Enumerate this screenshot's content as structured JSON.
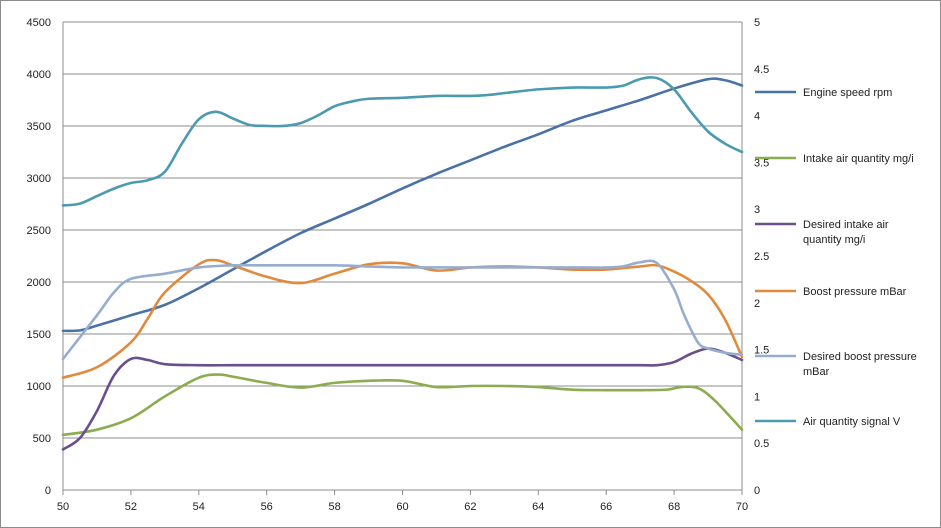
{
  "chart_data": {
    "type": "line",
    "x_range": [
      50,
      70
    ],
    "x_ticks": [
      "50",
      "52",
      "54",
      "56",
      "58",
      "60",
      "62",
      "64",
      "66",
      "68",
      "70"
    ],
    "y_left_range": [
      0,
      4500
    ],
    "y_left_ticks": [
      "0",
      "500",
      "1000",
      "1500",
      "2000",
      "2500",
      "3000",
      "3500",
      "4000",
      "4500"
    ],
    "y_right_range": [
      0,
      5
    ],
    "y_right_ticks": [
      "0",
      "0.5",
      "1",
      "1.5",
      "2",
      "2.5",
      "3",
      "3.5",
      "4",
      "4.5",
      "5"
    ],
    "grid": "horizontal",
    "legend_position": "right",
    "series": [
      {
        "name": "Engine speed rpm",
        "axis": "left",
        "color": "#4a72a6",
        "x": [
          50,
          50.5,
          51,
          52,
          53,
          54,
          55,
          56,
          57,
          58,
          59,
          60,
          61,
          62,
          63,
          64,
          65,
          66,
          67,
          68,
          69,
          69.5,
          70
        ],
        "y": [
          1530,
          1535,
          1580,
          1680,
          1780,
          1940,
          2120,
          2300,
          2470,
          2610,
          2750,
          2900,
          3040,
          3170,
          3300,
          3420,
          3550,
          3650,
          3750,
          3860,
          3950,
          3940,
          3890
        ]
      },
      {
        "name": "Intake air quantity mg/i",
        "axis": "left",
        "color": "#8bac4f",
        "x": [
          50,
          51,
          52,
          53,
          54,
          54.6,
          55,
          56,
          57,
          58,
          59,
          60,
          61,
          62,
          63,
          64,
          65,
          66,
          67,
          67.8,
          68.2,
          68.7,
          69.2,
          70
        ],
        "y": [
          530,
          580,
          690,
          900,
          1080,
          1110,
          1090,
          1030,
          985,
          1030,
          1050,
          1050,
          990,
          1000,
          1000,
          990,
          965,
          960,
          960,
          965,
          990,
          980,
          860,
          580
        ]
      },
      {
        "name": "Desired intake air quantity mg/i",
        "axis": "left",
        "color": "#6a4f8c",
        "x": [
          50,
          50.5,
          51,
          51.5,
          52,
          52.5,
          53,
          54,
          55,
          56,
          57,
          58,
          59,
          60,
          61,
          62,
          63,
          64,
          65,
          66,
          67,
          67.5,
          68,
          68.5,
          69,
          69.5,
          70
        ],
        "y": [
          390,
          500,
          760,
          1100,
          1260,
          1250,
          1210,
          1200,
          1200,
          1200,
          1200,
          1200,
          1200,
          1200,
          1200,
          1200,
          1200,
          1200,
          1200,
          1200,
          1200,
          1200,
          1230,
          1310,
          1360,
          1320,
          1250
        ]
      },
      {
        "name": "Boost pressure mBar",
        "axis": "left",
        "color": "#e08a3e",
        "x": [
          50,
          51,
          52,
          52.5,
          53,
          54,
          54.5,
          55,
          56,
          57,
          58,
          59,
          60,
          61,
          62,
          63,
          64,
          65,
          66,
          67,
          67.5,
          68,
          68.5,
          69,
          69.5,
          70
        ],
        "y": [
          1080,
          1180,
          1420,
          1650,
          1900,
          2170,
          2210,
          2160,
          2050,
          1990,
          2080,
          2170,
          2180,
          2110,
          2140,
          2150,
          2140,
          2120,
          2120,
          2150,
          2160,
          2100,
          2010,
          1880,
          1640,
          1280
        ]
      },
      {
        "name": "Desired boost pressure mBar",
        "axis": "left",
        "color": "#97add0",
        "x": [
          50,
          51,
          51.5,
          52,
          53,
          54,
          55,
          56,
          57,
          58,
          59,
          60,
          61,
          62,
          63,
          64,
          65,
          66,
          66.5,
          67,
          67.5,
          68,
          68.3,
          68.7,
          69,
          69.5,
          70
        ],
        "y": [
          1260,
          1680,
          1900,
          2030,
          2080,
          2140,
          2160,
          2160,
          2160,
          2160,
          2150,
          2140,
          2140,
          2140,
          2140,
          2140,
          2140,
          2140,
          2150,
          2190,
          2180,
          1930,
          1680,
          1420,
          1360,
          1320,
          1300
        ]
      },
      {
        "name": "Air quantity signal V",
        "axis": "right",
        "color": "#4b9ab0",
        "x": [
          50,
          50.5,
          51,
          51.5,
          52,
          52.5,
          53,
          53.5,
          54,
          54.5,
          55,
          55.5,
          56,
          56.5,
          57,
          57.5,
          58,
          58.5,
          59,
          60,
          61,
          62,
          62.5,
          63,
          64,
          65,
          66,
          66.5,
          67,
          67.5,
          68,
          68.5,
          69,
          69.5,
          70
        ],
        "y": [
          3.04,
          3.06,
          3.14,
          3.22,
          3.28,
          3.31,
          3.4,
          3.7,
          3.96,
          4.04,
          3.97,
          3.9,
          3.89,
          3.89,
          3.92,
          4.0,
          4.1,
          4.15,
          4.18,
          4.19,
          4.21,
          4.21,
          4.22,
          4.24,
          4.28,
          4.3,
          4.3,
          4.32,
          4.39,
          4.4,
          4.28,
          4.04,
          3.83,
          3.7,
          3.61
        ]
      }
    ]
  }
}
